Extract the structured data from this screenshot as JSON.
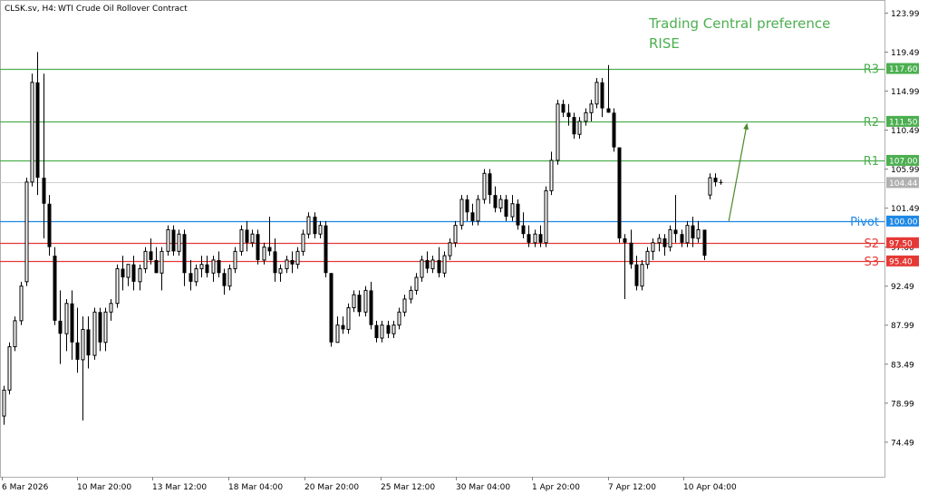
{
  "header": {
    "symbol": "CLSK.sv, H4:",
    "description": "WTI Crude Oil Rollover Contract"
  },
  "preference": {
    "line1": "Trading Central preference",
    "line2": "RISE",
    "color": "#4caf50"
  },
  "colors": {
    "resistance": "#4caf50",
    "support": "#e53935",
    "pivot": "#1e88e5",
    "last_price": "#b0b0b0",
    "arrow": "#4a8a2a",
    "candle": "#000000"
  },
  "chart_data": {
    "type": "candlestick",
    "timeframe": "H4",
    "ylim": [
      70.5,
      125.5
    ],
    "y_ticks": [
      "123.99",
      "119.49",
      "114.99",
      "110.49",
      "105.99",
      "101.49",
      "97.00",
      "92.49",
      "87.99",
      "83.49",
      "78.99",
      "74.49"
    ],
    "x_ticks": [
      "6 Mar 2026",
      "10 Mar 20:00",
      "13 Mar 12:00",
      "18 Mar 04:00",
      "20 Mar 20:00",
      "25 Mar 12:00",
      "30 Mar 04:00",
      "1 Apr 20:00",
      "7 Apr 12:00",
      "10 Apr 04:00"
    ],
    "levels": [
      {
        "name": "R3",
        "value": 117.6,
        "tag": "117.60",
        "kind": "resistance"
      },
      {
        "name": "R2",
        "value": 111.5,
        "tag": "111.50",
        "kind": "resistance"
      },
      {
        "name": "R1",
        "value": 107.0,
        "tag": "107.00",
        "kind": "resistance"
      },
      {
        "name": "Pivot",
        "value": 100.0,
        "tag": "100.00",
        "kind": "pivot"
      },
      {
        "name": "S2",
        "value": 97.5,
        "tag": "97.50",
        "kind": "support"
      },
      {
        "name": "S3",
        "value": 95.4,
        "tag": "95.40",
        "kind": "support"
      }
    ],
    "last_price": {
      "value": 104.44,
      "tag": "104.44"
    },
    "forecast_arrow": {
      "from": 100.0,
      "to": 111.2
    },
    "candles": [
      [
        77.5,
        81,
        76.5,
        80.5
      ],
      [
        80.5,
        86,
        80,
        85.5
      ],
      [
        85.5,
        89,
        85,
        88.5
      ],
      [
        88.5,
        93,
        88,
        92.5
      ],
      [
        93,
        105,
        92.5,
        104.5
      ],
      [
        104.5,
        117,
        104,
        116
      ],
      [
        116,
        119.5,
        103,
        105
      ],
      [
        105,
        117,
        98,
        102
      ],
      [
        102,
        103,
        96,
        97
      ],
      [
        96,
        97,
        88,
        88.5
      ],
      [
        88.5,
        92,
        83.5,
        87
      ],
      [
        87,
        91,
        85,
        90.5
      ],
      [
        90.5,
        92,
        84,
        86
      ],
      [
        86,
        90,
        82.5,
        84
      ],
      [
        84,
        89,
        77,
        87.5
      ],
      [
        87.5,
        89,
        83,
        84.5
      ],
      [
        84.5,
        90,
        84,
        89.5
      ],
      [
        89.5,
        90,
        85,
        86
      ],
      [
        86,
        90,
        85,
        89.5
      ],
      [
        89.5,
        91,
        88.5,
        90.5
      ],
      [
        90.5,
        95,
        90,
        94.5
      ],
      [
        94.5,
        96,
        92,
        93.5
      ],
      [
        93.5,
        95,
        92.5,
        95
      ],
      [
        95,
        96,
        92,
        93
      ],
      [
        93,
        95,
        92,
        94.5
      ],
      [
        94.5,
        97,
        94,
        96.5
      ],
      [
        96.5,
        98,
        95,
        95.5
      ],
      [
        95.5,
        97,
        94,
        94
      ],
      [
        94,
        97,
        92,
        96.5
      ],
      [
        96.5,
        99.5,
        96,
        99
      ],
      [
        99,
        99.5,
        96,
        96.5
      ],
      [
        96.5,
        99,
        96,
        98.5
      ],
      [
        98.5,
        99,
        92.5,
        94
      ],
      [
        94,
        95.5,
        92,
        93
      ],
      [
        93,
        95,
        92.5,
        94.5
      ],
      [
        94.5,
        96,
        93.5,
        95
      ],
      [
        95,
        96,
        93.5,
        94
      ],
      [
        94,
        96,
        93,
        95.5
      ],
      [
        95.5,
        96.5,
        93.5,
        94
      ],
      [
        94,
        94.5,
        91.5,
        92.5
      ],
      [
        92.5,
        95,
        92,
        94.5
      ],
      [
        94.5,
        97,
        94,
        96.5
      ],
      [
        96.5,
        99.5,
        96,
        99
      ],
      [
        99,
        100,
        96.5,
        97.5
      ],
      [
        97.5,
        99,
        97,
        98.5
      ],
      [
        98.5,
        99,
        95,
        95.5
      ],
      [
        95.5,
        97.5,
        95,
        97
      ],
      [
        97,
        100.5,
        96,
        96.5
      ],
      [
        96.5,
        98,
        93,
        94
      ],
      [
        94,
        95,
        93,
        94.5
      ],
      [
        94.5,
        96,
        94,
        95.5
      ],
      [
        95.5,
        96.5,
        94,
        95
      ],
      [
        95,
        97,
        94.5,
        96.5
      ],
      [
        96.5,
        99,
        96,
        98.5
      ],
      [
        98.5,
        101,
        98,
        100.5
      ],
      [
        100.5,
        101,
        98,
        98.5
      ],
      [
        98.5,
        100,
        98,
        99.5
      ],
      [
        99.5,
        100,
        93.5,
        94
      ],
      [
        94,
        94,
        85.5,
        86
      ],
      [
        86,
        89,
        86,
        88
      ],
      [
        88,
        89,
        87,
        87.5
      ],
      [
        87.5,
        90.5,
        87,
        90
      ],
      [
        90,
        92,
        89.5,
        91.5
      ],
      [
        91.5,
        92,
        89,
        89.5
      ],
      [
        89.5,
        92.5,
        89,
        92
      ],
      [
        92,
        93,
        87.5,
        88
      ],
      [
        88,
        88.5,
        86,
        86.5
      ],
      [
        86.5,
        88.5,
        86,
        88
      ],
      [
        88,
        88.5,
        86.5,
        87
      ],
      [
        87,
        88.5,
        86.5,
        88
      ],
      [
        88,
        90,
        87.5,
        89.5
      ],
      [
        89.5,
        91.5,
        89,
        91
      ],
      [
        91,
        92.5,
        90.5,
        92
      ],
      [
        92,
        94,
        91.5,
        93.5
      ],
      [
        93.5,
        96,
        93,
        95.5
      ],
      [
        95.5,
        96.5,
        94,
        94.5
      ],
      [
        94.5,
        96,
        94,
        95.5
      ],
      [
        95.5,
        97,
        93.5,
        94
      ],
      [
        94,
        96.5,
        93.5,
        96
      ],
      [
        96,
        98,
        95.5,
        97.5
      ],
      [
        97.5,
        100,
        97,
        99.5
      ],
      [
        99.5,
        103,
        99,
        102.5
      ],
      [
        102.5,
        103,
        100,
        101
      ],
      [
        101,
        102,
        99.5,
        100
      ],
      [
        100,
        103,
        99.5,
        102.5
      ],
      [
        102.5,
        106,
        102,
        105.5
      ],
      [
        105.5,
        106,
        102,
        103
      ],
      [
        103,
        104,
        101,
        101.5
      ],
      [
        101.5,
        103,
        101,
        102.5
      ],
      [
        102.5,
        103,
        100,
        100.5
      ],
      [
        100.5,
        103,
        100,
        102
      ],
      [
        102,
        102.5,
        99,
        99.5
      ],
      [
        99.5,
        101,
        98,
        98.5
      ],
      [
        98.5,
        99.5,
        97,
        97.5
      ],
      [
        97.5,
        99,
        97,
        98.5
      ],
      [
        98.5,
        99.5,
        97,
        97.5
      ],
      [
        97.5,
        104,
        97,
        103.5
      ],
      [
        103.5,
        108,
        103,
        107
      ],
      [
        107,
        114,
        106.5,
        113.5
      ],
      [
        113.5,
        114,
        112,
        112.5
      ],
      [
        112.5,
        113.5,
        111,
        112
      ],
      [
        112,
        112.5,
        109.5,
        110
      ],
      [
        110,
        112,
        109.5,
        111.5
      ],
      [
        111.5,
        113,
        111,
        112.5
      ],
      [
        112.5,
        114,
        111.5,
        113.5
      ],
      [
        113.5,
        116.5,
        113,
        116
      ],
      [
        116,
        116.5,
        112,
        113
      ],
      [
        113,
        118,
        112.5,
        112.5
      ],
      [
        112.5,
        113,
        108,
        108.5
      ],
      [
        108.5,
        108.5,
        97.5,
        98
      ],
      [
        98,
        98.5,
        91,
        97.5
      ],
      [
        97.5,
        99,
        94.5,
        95
      ],
      [
        95,
        96,
        92,
        92.5
      ],
      [
        92.5,
        95.5,
        92,
        95
      ],
      [
        95,
        97,
        94.5,
        96.5
      ],
      [
        96.5,
        98,
        95.5,
        97.5
      ],
      [
        97.5,
        98.5,
        96.5,
        98
      ],
      [
        98,
        98.5,
        96,
        97
      ],
      [
        97,
        99.5,
        96.5,
        99
      ],
      [
        99,
        103,
        97.5,
        98.5
      ],
      [
        98.5,
        99,
        97,
        97.5
      ],
      [
        97.5,
        100,
        97,
        99.5
      ],
      [
        99.5,
        100.5,
        97,
        98
      ],
      [
        98,
        100,
        97.5,
        99
      ],
      [
        99,
        99,
        95.5,
        96
      ],
      [
        103,
        105.5,
        102.5,
        105
      ],
      [
        105,
        105.5,
        104,
        104.5
      ],
      [
        104.5,
        104.8,
        104.2,
        104.44
      ]
    ]
  }
}
